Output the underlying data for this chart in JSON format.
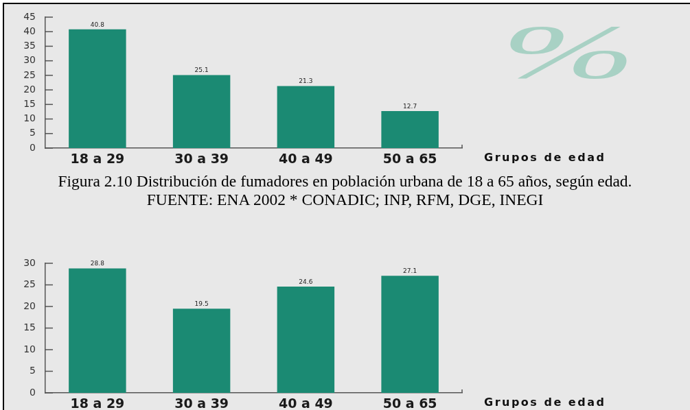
{
  "chart_data": [
    {
      "type": "bar",
      "title": "Figura 2.10 Distribución de fumadores en población urbana de 18 a 65 años, según edad.",
      "annotations": [
        "FUENTE: ENA 2002 * CONADIC; INP, RFM, DGE, INEGI"
      ],
      "xlabel": "Grupos de edad",
      "ylabel": "%",
      "categories": [
        "18 a 29",
        "30 a 39",
        "40 a 49",
        "50 a 65"
      ],
      "values": [
        40.8,
        25.1,
        21.3,
        12.7
      ],
      "color": "#1b8a73",
      "ylim": [
        0,
        45
      ],
      "yticks": [
        0,
        5,
        10,
        15,
        20,
        25,
        30,
        35,
        40,
        45
      ],
      "data_labels": true
    },
    {
      "type": "bar",
      "xlabel": "Grupos de edad",
      "categories": [
        "18 a 29",
        "30 a 39",
        "40 a 49",
        "50 a 65"
      ],
      "values": [
        28.8,
        19.5,
        24.6,
        27.1
      ],
      "color": "#1b8a73",
      "ylim": [
        0,
        30
      ],
      "yticks": [
        0,
        5,
        10,
        15,
        20,
        25,
        30
      ],
      "data_labels": true
    }
  ]
}
